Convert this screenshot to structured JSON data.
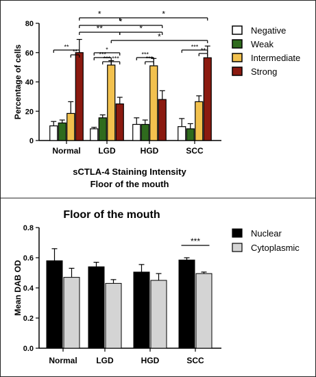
{
  "chart_data": [
    {
      "type": "bar",
      "title": "sCTLA-4 Staining Intensity",
      "subtitle": "Floor of the mouth",
      "xlabel": "",
      "ylabel": "Percentage of cells",
      "ylim": [
        0,
        80
      ],
      "yticks": [
        "0",
        "20",
        "40",
        "60",
        "80"
      ],
      "categories": [
        "Normal",
        "LGD",
        "HGD",
        "SCC"
      ],
      "series": [
        {
          "name": "Negative",
          "color": "#ffffff",
          "values": [
            10,
            8,
            11,
            9.5
          ],
          "errors": [
            3,
            1,
            4.5,
            5.5
          ]
        },
        {
          "name": "Weak",
          "color": "#2f6b1e",
          "values": [
            12,
            15.5,
            11,
            8
          ],
          "errors": [
            2,
            2,
            3,
            3.5
          ]
        },
        {
          "name": "Intermediate",
          "color": "#f2c14e",
          "values": [
            18.5,
            51.5,
            51,
            26.5
          ],
          "errors": [
            8,
            3,
            5,
            4
          ]
        },
        {
          "name": "Strong",
          "color": "#8b1a10",
          "values": [
            60,
            25,
            28,
            56.5
          ],
          "errors": [
            9,
            4.5,
            6,
            8
          ]
        }
      ],
      "legend_position": "right",
      "significance": [
        "*",
        "*",
        "*",
        "**",
        "*",
        "*",
        "**",
        "**",
        "*",
        "***",
        "***",
        "***",
        "***",
        "***",
        "***",
        "**"
      ]
    },
    {
      "type": "bar",
      "title": "Floor of the mouth",
      "xlabel": "",
      "ylabel": "Mean DAB OD",
      "ylim": [
        0,
        0.8
      ],
      "yticks": [
        "0.0",
        "0.2",
        "0.4",
        "0.6",
        "0.8"
      ],
      "categories": [
        "Normal",
        "LGD",
        "HGD",
        "SCC"
      ],
      "series": [
        {
          "name": "Nuclear",
          "color": "#000000",
          "values": [
            0.58,
            0.54,
            0.505,
            0.585
          ],
          "errors": [
            0.08,
            0.03,
            0.05,
            0.015
          ]
        },
        {
          "name": "Cytoplasmic",
          "color": "#d4d4d4",
          "values": [
            0.47,
            0.43,
            0.45,
            0.495
          ],
          "errors": [
            0.06,
            0.025,
            0.045,
            0.01
          ]
        }
      ],
      "legend_position": "top-right",
      "significance": [
        "***"
      ]
    }
  ]
}
